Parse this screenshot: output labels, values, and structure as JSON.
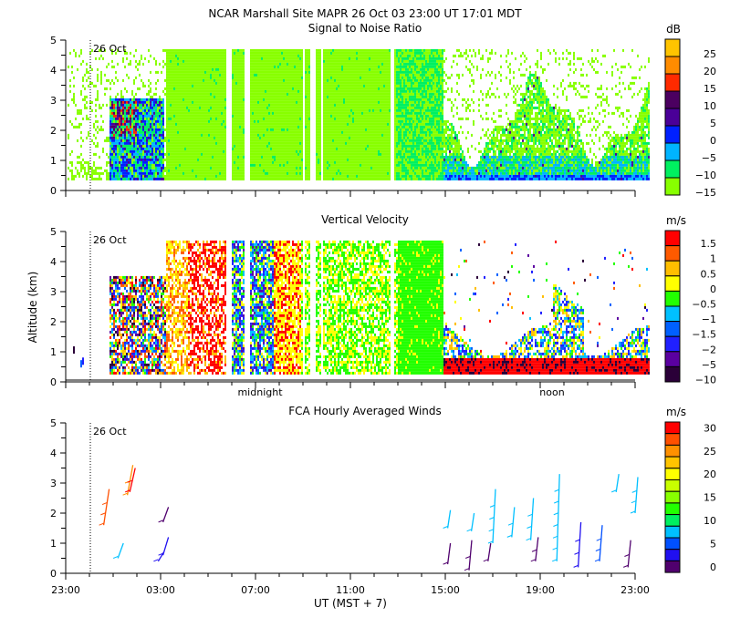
{
  "header": {
    "title": "NCAR Marshall Site   MAPR 26 Oct 03   23:00 UT   17:01   MDT"
  },
  "chart_data": [
    {
      "type": "heatmap",
      "title": "Signal to Noise Ratio",
      "ylabel": "",
      "ylim": [
        0,
        5
      ],
      "yticks": [
        "0",
        "1",
        "2",
        "3",
        "4",
        "5"
      ],
      "date_marker": "26 Oct",
      "colorbar": {
        "unit": "dB",
        "labels": [
          "25",
          "20",
          "15",
          "10",
          "5",
          "0",
          "−5",
          "−10",
          "−15"
        ],
        "colors": [
          "#ffc400",
          "#ff8c00",
          "#ff2a00",
          "#4b0060",
          "#4a0098",
          "#0020ff",
          "#00b4ff",
          "#00f060",
          "#88ff00"
        ]
      }
    },
    {
      "type": "heatmap",
      "title": "Vertical Velocity",
      "ylabel": "Altitude  (km)",
      "ylim": [
        0,
        5
      ],
      "yticks": [
        "0",
        "1",
        "2",
        "3",
        "4",
        "5"
      ],
      "date_marker": "26 Oct",
      "time_markers": [
        "midnight",
        "noon"
      ],
      "colorbar": {
        "unit": "m/s",
        "labels": [
          "1.5",
          "1",
          "0.5",
          "0",
          "−0.5",
          "−1",
          "−1.5",
          "−2",
          "−5",
          "−10"
        ],
        "colors": [
          "#ff0000",
          "#ff5a00",
          "#ffbe00",
          "#ffff00",
          "#22ff00",
          "#00c0ff",
          "#0060ff",
          "#2020ff",
          "#5a00a0",
          "#2a0038"
        ]
      }
    },
    {
      "type": "scatter",
      "title": "FCA Hourly Averaged Winds",
      "ylabel": "",
      "ylim": [
        0,
        5
      ],
      "yticks": [
        "0",
        "1",
        "2",
        "3",
        "4",
        "5"
      ],
      "date_marker": "26 Oct",
      "xlabel": "UT  (MST + 7)",
      "xticks": [
        "23:00",
        "03:00",
        "07:00",
        "11:00",
        "15:00",
        "19:00",
        "23:00"
      ],
      "colorbar": {
        "unit": "m/s",
        "labels": [
          "30",
          "25",
          "20",
          "15",
          "10",
          "5",
          "0"
        ],
        "colors": [
          "#ff0000",
          "#ff5000",
          "#ff9000",
          "#ffc400",
          "#ffff00",
          "#c8ff00",
          "#88ff00",
          "#22ff00",
          "#00f060",
          "#00c0ff",
          "#0050ff",
          "#2010f0",
          "#50006e"
        ]
      }
    }
  ]
}
